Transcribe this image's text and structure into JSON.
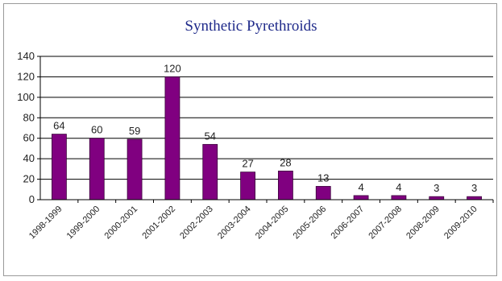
{
  "chart_data": {
    "type": "bar",
    "title": "Synthetic Pyrethroids",
    "xlabel": "",
    "ylabel": "",
    "categories": [
      "1998-1999",
      "1999-2000",
      "2000-2001",
      "2001-2002",
      "2002-2003",
      "2003-2004",
      "2004-2005",
      "2005-2006",
      "2006-2007",
      "2007-2008",
      "2008-2009",
      "2009-2010"
    ],
    "values": [
      64,
      60,
      59,
      120,
      54,
      27,
      28,
      13,
      4,
      4,
      3,
      3
    ],
    "data_labels": [
      "64",
      "60",
      "59",
      "120",
      "54",
      "27",
      "28",
      "13",
      "4",
      "4",
      "3",
      "3"
    ],
    "ylim": [
      0,
      140
    ],
    "yticks": [
      0,
      20,
      40,
      60,
      80,
      100,
      120,
      140
    ],
    "grid": true,
    "legend": "none",
    "bar_color": "#800080"
  }
}
